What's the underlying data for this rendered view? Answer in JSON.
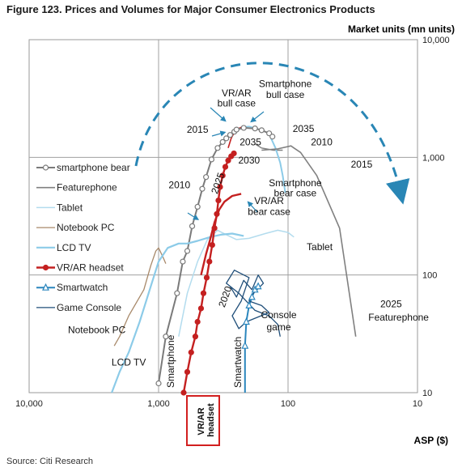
{
  "figure": {
    "title": "Figure 123. Prices and Volumes for Major Consumer Electronics Products",
    "source": "Source: Citi Research"
  },
  "colors": {
    "smartphone_bear": "#7a7a7a",
    "featurephone": "#808080",
    "tablet": "#b3dcee",
    "notebook": "#a8896a",
    "lcd_tv": "#8ccbe8",
    "vrar": "#c42020",
    "smartwatch": "#2b86bd",
    "game_console": "#1f4e79",
    "arrow": "#2986b5",
    "highlight_box": "#d21f1f"
  },
  "chart_data": {
    "type": "line",
    "title": "Figure 123. Prices and Volumes for Major Consumer Electronics Products",
    "xlabel": "ASP ($)",
    "ylabel": "Market units (mn units)",
    "x_scale": "log",
    "x_reversed": true,
    "y_scale": "log",
    "xlim": [
      10000,
      10
    ],
    "ylim": [
      10,
      10000
    ],
    "x_ticks": [
      "10,000",
      "1,000",
      "100",
      "10"
    ],
    "y_ticks": [
      "10",
      "100",
      "1,000",
      "10,000"
    ],
    "grid": true,
    "legend_position": "top-left",
    "series": [
      {
        "key": "smartphone",
        "name": "smartphone bear",
        "color": "#7a7a7a",
        "marker": "circle-open",
        "x": [
          1000,
          880,
          720,
          650,
          600,
          550,
          500,
          460,
          430,
          390,
          350,
          320,
          300,
          280,
          260,
          250,
          220,
          180,
          160,
          140,
          132
        ],
        "y": [
          12,
          30,
          70,
          130,
          160,
          260,
          380,
          540,
          680,
          960,
          1200,
          1350,
          1450,
          1550,
          1650,
          1720,
          1780,
          1760,
          1700,
          1600,
          1500
        ]
      },
      {
        "key": "featurephone",
        "name": "Featurephone",
        "color": "#808080",
        "marker": "none",
        "x": [
          160,
          120,
          95,
          90,
          80,
          60,
          40,
          30
        ],
        "y": [
          1150,
          1180,
          1250,
          1200,
          1100,
          700,
          250,
          30
        ]
      },
      {
        "key": "tablet",
        "name": "Tablet",
        "color": "#b3dcee",
        "marker": "none",
        "x": [
          700,
          600,
          500,
          420,
          350,
          300,
          250,
          200,
          150,
          120,
          100,
          90
        ],
        "y": [
          30,
          70,
          130,
          200,
          240,
          220,
          200,
          205,
          225,
          240,
          230,
          210
        ]
      },
      {
        "key": "notebook",
        "name": "Notebook PC",
        "color": "#a8896a",
        "marker": "none",
        "x": [
          2200,
          2000,
          1700,
          1300,
          1150,
          1050,
          1000,
          920,
          880
        ],
        "y": [
          25,
          30,
          45,
          75,
          120,
          160,
          170,
          140,
          125
        ]
      },
      {
        "key": "lcd_tv",
        "name": "LCD TV",
        "color": "#8ccbe8",
        "marker": "none",
        "x": [
          2300,
          2000,
          1700,
          1400,
          1150,
          1000,
          850,
          700,
          600,
          500,
          400,
          330,
          270,
          220
        ],
        "y": [
          10,
          15,
          22,
          40,
          80,
          130,
          170,
          185,
          185,
          195,
          210,
          220,
          225,
          215
        ]
      },
      {
        "key": "vrar",
        "name": "VR/AR headset",
        "color": "#c42020",
        "marker": "circle-filled",
        "x": [
          640,
          600,
          560,
          520,
          500,
          470,
          450,
          425,
          405,
          385,
          370,
          355,
          345,
          335,
          320,
          305,
          290,
          275,
          262
        ],
        "y": [
          10,
          15,
          22,
          30,
          40,
          52,
          70,
          95,
          130,
          180,
          250,
          330,
          430,
          560,
          700,
          830,
          940,
          1020,
          1080
        ]
      },
      {
        "key": "vrar_bear",
        "name": "",
        "color": "#c42020",
        "marker": "none",
        "x": [
          470,
          430,
          400,
          370,
          340,
          310,
          270,
          230
        ],
        "y": [
          100,
          150,
          200,
          280,
          360,
          420,
          470,
          490
        ]
      },
      {
        "key": "smartwatch",
        "name": "Smartwatch",
        "color": "#2b86bd",
        "marker": "triangle-open",
        "x": [
          215,
          215,
          210,
          200,
          190,
          180,
          170
        ],
        "y": [
          10,
          25,
          40,
          55,
          65,
          75,
          80
        ]
      },
      {
        "key": "game_console",
        "name": "Game Console",
        "color": "#1f4e79",
        "marker": "none",
        "x": [
          280,
          250,
          220,
          190,
          170,
          155,
          185,
          200,
          160,
          140,
          210,
          240,
          270,
          230,
          200,
          260,
          300,
          240,
          180,
          140,
          120,
          115
        ],
        "y": [
          80,
          65,
          90,
          75,
          100,
          85,
          70,
          60,
          55,
          48,
          40,
          35,
          45,
          60,
          95,
          110,
          85,
          70,
          50,
          45,
          38,
          30
        ]
      }
    ],
    "annotations": [
      {
        "text": "VR/AR",
        "x": 250,
        "y": 3300
      },
      {
        "text": "bull case",
        "x": 250,
        "y": 2700
      },
      {
        "text": "Smartphone",
        "x": 105,
        "y": 3950
      },
      {
        "text": "bull case",
        "x": 105,
        "y": 3200
      },
      {
        "text": "2015",
        "x": 500,
        "y": 1620
      },
      {
        "text": "2035",
        "x": 76,
        "y": 1640
      },
      {
        "text": "2035",
        "x": 195,
        "y": 1260
      },
      {
        "text": "2010",
        "x": 55,
        "y": 1260
      },
      {
        "text": "2030",
        "x": 200,
        "y": 885
      },
      {
        "text": "2015",
        "x": 27,
        "y": 820
      },
      {
        "text": "2010",
        "x": 690,
        "y": 545
      },
      {
        "text": "2025",
        "x": 330,
        "y": 590
      },
      {
        "text": "Smartphone",
        "x": 88,
        "y": 570
      },
      {
        "text": "bear case",
        "x": 88,
        "y": 465
      },
      {
        "text": "VR/AR",
        "x": 140,
        "y": 400
      },
      {
        "text": "bear case",
        "x": 140,
        "y": 325
      },
      {
        "text": "Tablet",
        "x": 57,
        "y": 163
      },
      {
        "text": "2020",
        "x": 290,
        "y": 64
      },
      {
        "text": "Console",
        "x": 118,
        "y": 43
      },
      {
        "text": "game",
        "x": 118,
        "y": 34
      },
      {
        "text": "2025",
        "x": 16,
        "y": 53
      },
      {
        "text": "Featurephone",
        "x": 14,
        "y": 41
      },
      {
        "text": "Notebook PC",
        "x": 3000,
        "y": 32
      },
      {
        "text": "LCD TV",
        "x": 1700,
        "y": 17
      },
      {
        "text": "Smartphone",
        "x": 760,
        "y": 11
      },
      {
        "text": "Smartwatch",
        "x": 230,
        "y": 11
      }
    ],
    "highlight_label": "VR/AR headset",
    "highlight_lines": [
      "VR/AR",
      "headset"
    ]
  }
}
